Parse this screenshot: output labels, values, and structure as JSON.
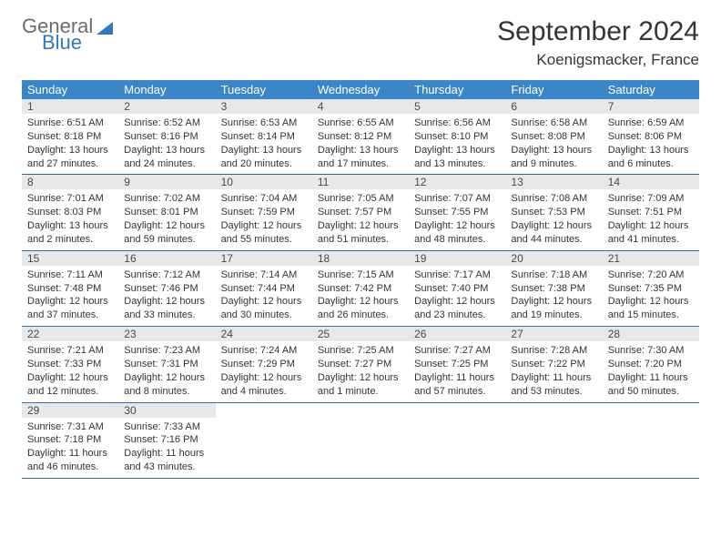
{
  "logo": {
    "word1": "General",
    "word2": "Blue"
  },
  "title": "September 2024",
  "location": "Koenigsmacker, France",
  "colors": {
    "header_bg": "#3a86c8",
    "header_text": "#ffffff",
    "daynum_bg": "#e7e8e9",
    "rule": "#2f6fa6",
    "logo_gray": "#6b6b6b",
    "logo_blue": "#2f7abf"
  },
  "typography": {
    "title_fontsize": 30,
    "location_fontsize": 17,
    "dow_fontsize": 13,
    "daynum_fontsize": 12,
    "body_fontsize": 11
  },
  "dow": [
    "Sunday",
    "Monday",
    "Tuesday",
    "Wednesday",
    "Thursday",
    "Friday",
    "Saturday"
  ],
  "weeks": [
    [
      {
        "n": "1",
        "sunrise": "Sunrise: 6:51 AM",
        "sunset": "Sunset: 8:18 PM",
        "day1": "Daylight: 13 hours",
        "day2": "and 27 minutes."
      },
      {
        "n": "2",
        "sunrise": "Sunrise: 6:52 AM",
        "sunset": "Sunset: 8:16 PM",
        "day1": "Daylight: 13 hours",
        "day2": "and 24 minutes."
      },
      {
        "n": "3",
        "sunrise": "Sunrise: 6:53 AM",
        "sunset": "Sunset: 8:14 PM",
        "day1": "Daylight: 13 hours",
        "day2": "and 20 minutes."
      },
      {
        "n": "4",
        "sunrise": "Sunrise: 6:55 AM",
        "sunset": "Sunset: 8:12 PM",
        "day1": "Daylight: 13 hours",
        "day2": "and 17 minutes."
      },
      {
        "n": "5",
        "sunrise": "Sunrise: 6:56 AM",
        "sunset": "Sunset: 8:10 PM",
        "day1": "Daylight: 13 hours",
        "day2": "and 13 minutes."
      },
      {
        "n": "6",
        "sunrise": "Sunrise: 6:58 AM",
        "sunset": "Sunset: 8:08 PM",
        "day1": "Daylight: 13 hours",
        "day2": "and 9 minutes."
      },
      {
        "n": "7",
        "sunrise": "Sunrise: 6:59 AM",
        "sunset": "Sunset: 8:06 PM",
        "day1": "Daylight: 13 hours",
        "day2": "and 6 minutes."
      }
    ],
    [
      {
        "n": "8",
        "sunrise": "Sunrise: 7:01 AM",
        "sunset": "Sunset: 8:03 PM",
        "day1": "Daylight: 13 hours",
        "day2": "and 2 minutes."
      },
      {
        "n": "9",
        "sunrise": "Sunrise: 7:02 AM",
        "sunset": "Sunset: 8:01 PM",
        "day1": "Daylight: 12 hours",
        "day2": "and 59 minutes."
      },
      {
        "n": "10",
        "sunrise": "Sunrise: 7:04 AM",
        "sunset": "Sunset: 7:59 PM",
        "day1": "Daylight: 12 hours",
        "day2": "and 55 minutes."
      },
      {
        "n": "11",
        "sunrise": "Sunrise: 7:05 AM",
        "sunset": "Sunset: 7:57 PM",
        "day1": "Daylight: 12 hours",
        "day2": "and 51 minutes."
      },
      {
        "n": "12",
        "sunrise": "Sunrise: 7:07 AM",
        "sunset": "Sunset: 7:55 PM",
        "day1": "Daylight: 12 hours",
        "day2": "and 48 minutes."
      },
      {
        "n": "13",
        "sunrise": "Sunrise: 7:08 AM",
        "sunset": "Sunset: 7:53 PM",
        "day1": "Daylight: 12 hours",
        "day2": "and 44 minutes."
      },
      {
        "n": "14",
        "sunrise": "Sunrise: 7:09 AM",
        "sunset": "Sunset: 7:51 PM",
        "day1": "Daylight: 12 hours",
        "day2": "and 41 minutes."
      }
    ],
    [
      {
        "n": "15",
        "sunrise": "Sunrise: 7:11 AM",
        "sunset": "Sunset: 7:48 PM",
        "day1": "Daylight: 12 hours",
        "day2": "and 37 minutes."
      },
      {
        "n": "16",
        "sunrise": "Sunrise: 7:12 AM",
        "sunset": "Sunset: 7:46 PM",
        "day1": "Daylight: 12 hours",
        "day2": "and 33 minutes."
      },
      {
        "n": "17",
        "sunrise": "Sunrise: 7:14 AM",
        "sunset": "Sunset: 7:44 PM",
        "day1": "Daylight: 12 hours",
        "day2": "and 30 minutes."
      },
      {
        "n": "18",
        "sunrise": "Sunrise: 7:15 AM",
        "sunset": "Sunset: 7:42 PM",
        "day1": "Daylight: 12 hours",
        "day2": "and 26 minutes."
      },
      {
        "n": "19",
        "sunrise": "Sunrise: 7:17 AM",
        "sunset": "Sunset: 7:40 PM",
        "day1": "Daylight: 12 hours",
        "day2": "and 23 minutes."
      },
      {
        "n": "20",
        "sunrise": "Sunrise: 7:18 AM",
        "sunset": "Sunset: 7:38 PM",
        "day1": "Daylight: 12 hours",
        "day2": "and 19 minutes."
      },
      {
        "n": "21",
        "sunrise": "Sunrise: 7:20 AM",
        "sunset": "Sunset: 7:35 PM",
        "day1": "Daylight: 12 hours",
        "day2": "and 15 minutes."
      }
    ],
    [
      {
        "n": "22",
        "sunrise": "Sunrise: 7:21 AM",
        "sunset": "Sunset: 7:33 PM",
        "day1": "Daylight: 12 hours",
        "day2": "and 12 minutes."
      },
      {
        "n": "23",
        "sunrise": "Sunrise: 7:23 AM",
        "sunset": "Sunset: 7:31 PM",
        "day1": "Daylight: 12 hours",
        "day2": "and 8 minutes."
      },
      {
        "n": "24",
        "sunrise": "Sunrise: 7:24 AM",
        "sunset": "Sunset: 7:29 PM",
        "day1": "Daylight: 12 hours",
        "day2": "and 4 minutes."
      },
      {
        "n": "25",
        "sunrise": "Sunrise: 7:25 AM",
        "sunset": "Sunset: 7:27 PM",
        "day1": "Daylight: 12 hours",
        "day2": "and 1 minute."
      },
      {
        "n": "26",
        "sunrise": "Sunrise: 7:27 AM",
        "sunset": "Sunset: 7:25 PM",
        "day1": "Daylight: 11 hours",
        "day2": "and 57 minutes."
      },
      {
        "n": "27",
        "sunrise": "Sunrise: 7:28 AM",
        "sunset": "Sunset: 7:22 PM",
        "day1": "Daylight: 11 hours",
        "day2": "and 53 minutes."
      },
      {
        "n": "28",
        "sunrise": "Sunrise: 7:30 AM",
        "sunset": "Sunset: 7:20 PM",
        "day1": "Daylight: 11 hours",
        "day2": "and 50 minutes."
      }
    ],
    [
      {
        "n": "29",
        "sunrise": "Sunrise: 7:31 AM",
        "sunset": "Sunset: 7:18 PM",
        "day1": "Daylight: 11 hours",
        "day2": "and 46 minutes."
      },
      {
        "n": "30",
        "sunrise": "Sunrise: 7:33 AM",
        "sunset": "Sunset: 7:16 PM",
        "day1": "Daylight: 11 hours",
        "day2": "and 43 minutes."
      },
      null,
      null,
      null,
      null,
      null
    ]
  ]
}
